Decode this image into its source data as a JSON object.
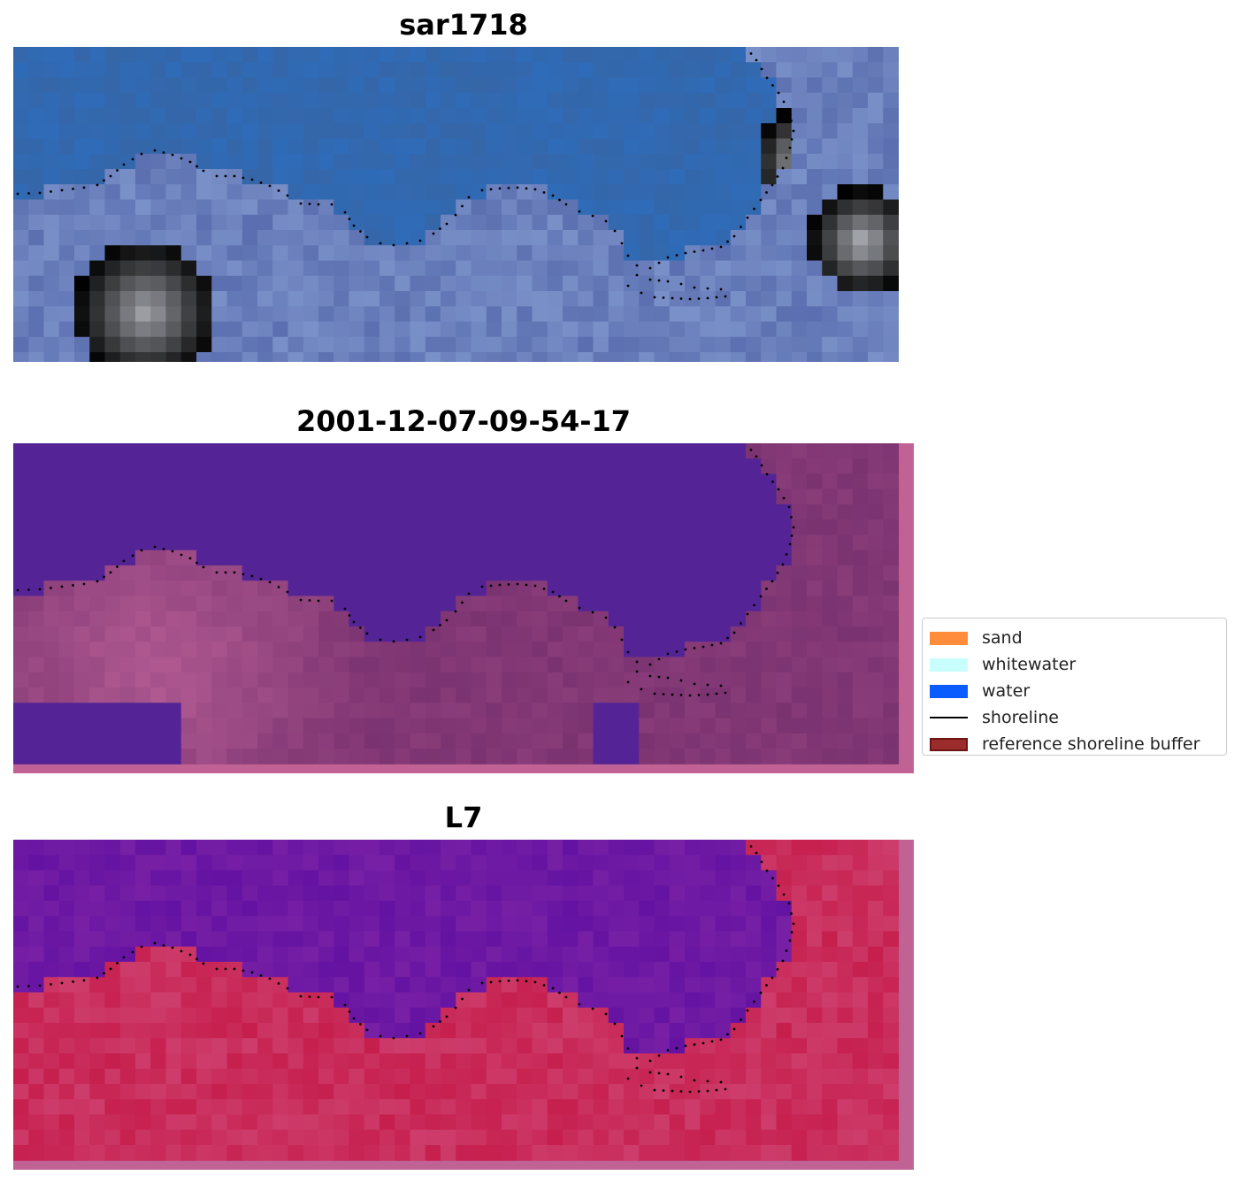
{
  "figure": {
    "panels": [
      {
        "id": "rgb",
        "title": "sar1718"
      },
      {
        "id": "classified",
        "title": "2001-12-07-09-54-17"
      },
      {
        "id": "mndwi",
        "title": "L7"
      }
    ]
  },
  "legend": {
    "items": [
      {
        "label": "sand",
        "color": "#ff8c3a",
        "kind": "patch"
      },
      {
        "label": "whitewater",
        "color": "#c8fffd",
        "kind": "patch"
      },
      {
        "label": "water",
        "color": "#0a5cff",
        "kind": "patch"
      },
      {
        "label": "shoreline",
        "color": "#000000",
        "kind": "line"
      },
      {
        "label": "reference shoreline buffer",
        "color": "#9b2c2c",
        "kind": "patch"
      }
    ]
  },
  "colors": {
    "rgb_ocean": "#3566a8",
    "rgb_land": "#7a90c8",
    "rgb_bright": "#e8ecf5",
    "class_water": "#542496",
    "class_land": "#7a3270",
    "class_land_light": "#b45c93",
    "class_border": "#c06293",
    "index_water": "#6412a2",
    "index_land": "#c61f4e",
    "index_land_light": "#d04a78",
    "index_border": "#c06293",
    "shoreline_dots": "#000000"
  }
}
